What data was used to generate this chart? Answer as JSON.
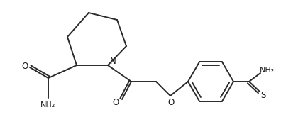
{
  "bg_color": "#ffffff",
  "line_color": "#2a2a2a",
  "line_width": 1.4,
  "text_color": "#1a1a1a",
  "font_size": 7.5,
  "figsize": [
    3.96,
    1.79
  ],
  "dpi": 100,
  "xlim": [
    0,
    396
  ],
  "ylim": [
    0,
    179
  ]
}
